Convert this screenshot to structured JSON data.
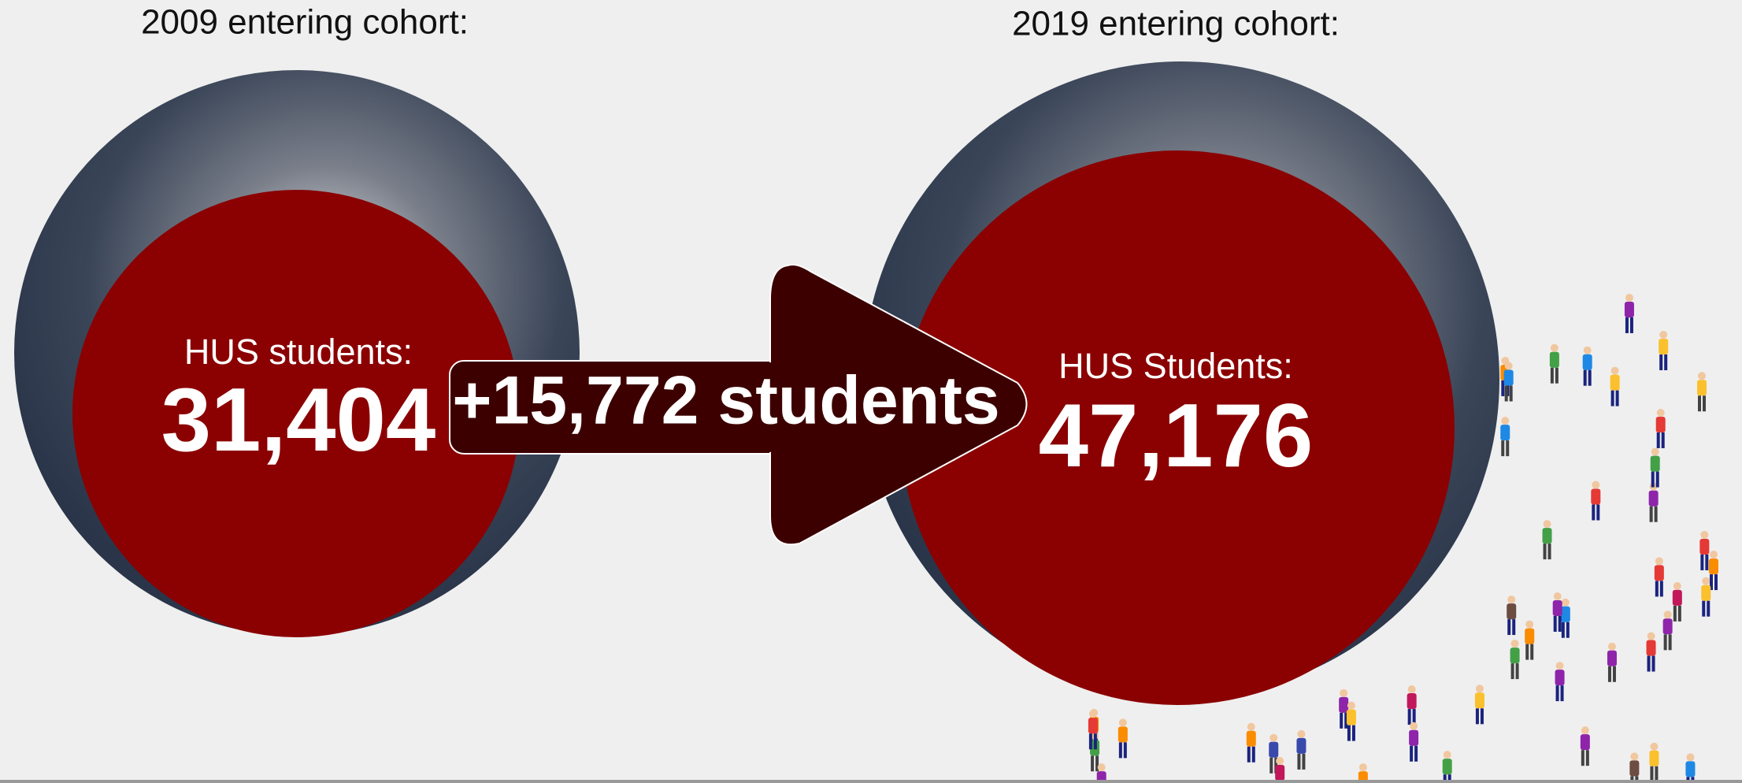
{
  "left": {
    "heading": "2009 entering cohort:",
    "label": "HUS students:",
    "count": "31,404"
  },
  "change": {
    "label": "+15,772 students"
  },
  "right": {
    "heading": "2019 entering cohort:",
    "label": "HUS Students:",
    "count": "47,176"
  }
}
